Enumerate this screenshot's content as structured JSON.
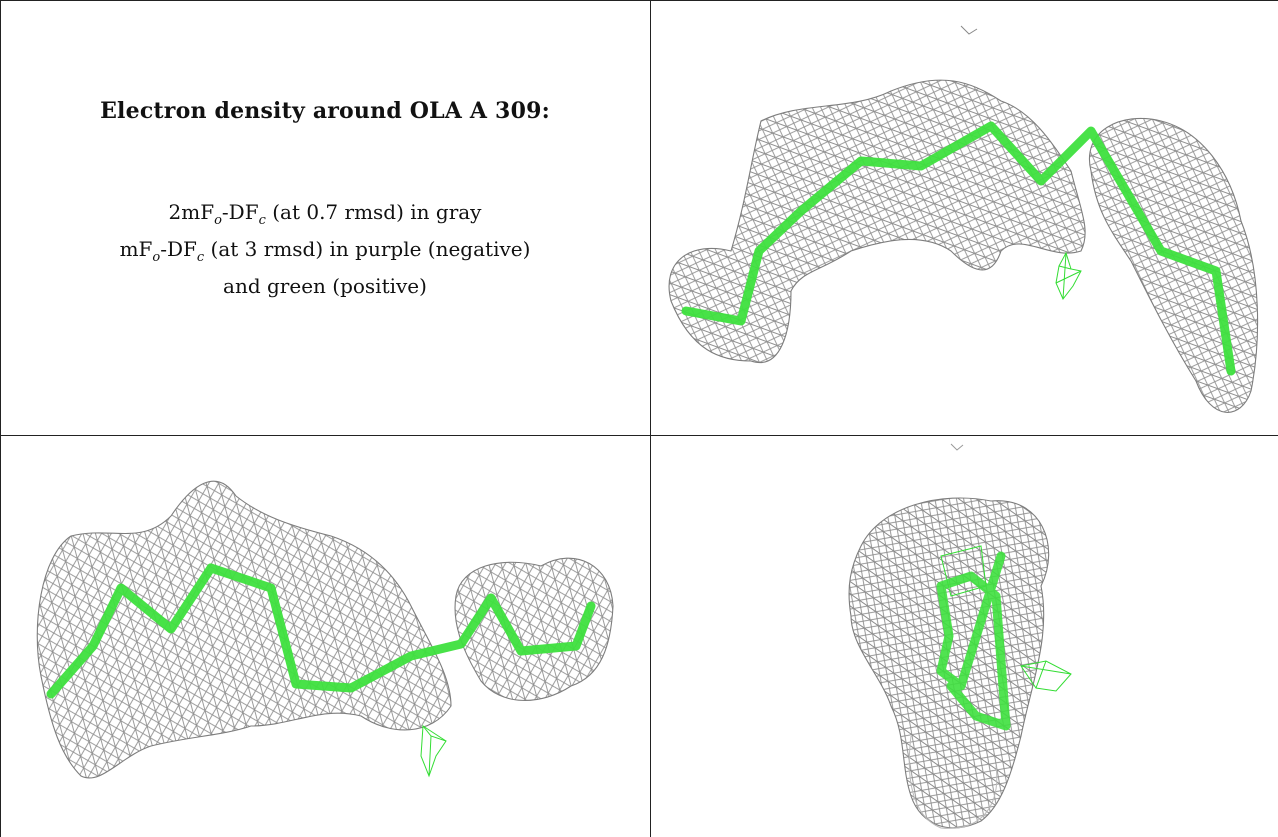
{
  "title": "Electron density around OLA A 309:",
  "caption": {
    "line1": {
      "a": "2mF",
      "a_sub": "o",
      "b": "-DF",
      "b_sub": "c",
      "rest": " (at 0.7 rmsd) in gray"
    },
    "line2": {
      "a": "mF",
      "a_sub": "o",
      "b": "-DF",
      "b_sub": "c",
      "rest": " (at 3 rmsd) in purple (negative)"
    },
    "line3": "and green (positive)"
  },
  "colors": {
    "mesh": "#8a8a8a",
    "ligand": "#3ee03e",
    "positive_density": "#33dd33",
    "border": "#222222"
  }
}
